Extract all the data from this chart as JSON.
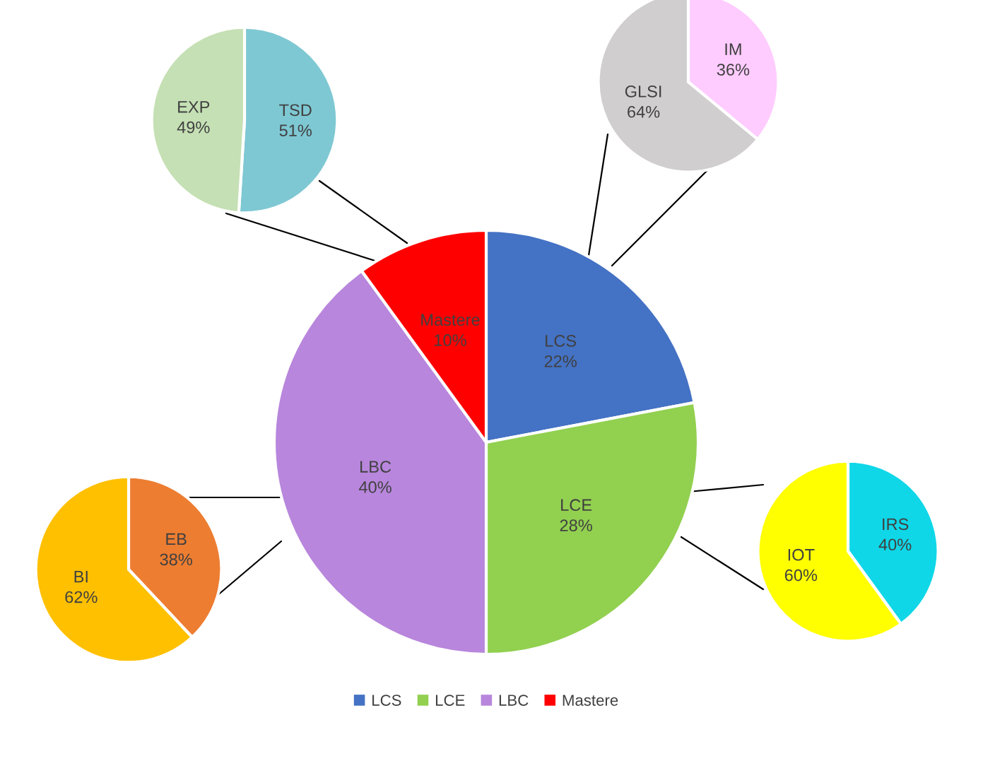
{
  "chart_data": [
    {
      "type": "pie",
      "categories": [
        "TSD",
        "EXP"
      ],
      "values": [
        51,
        49
      ],
      "colors": [
        "#7ec8d3",
        "#c5e0b4"
      ],
      "value_labels": [
        "51%",
        "49%"
      ],
      "legend": false
    },
    {
      "type": "pie",
      "categories": [
        "IM",
        "GLSI"
      ],
      "values": [
        36,
        64
      ],
      "colors": [
        "#ffccff",
        "#d0cece"
      ],
      "value_labels": [
        "36%",
        "64%"
      ],
      "legend": false
    },
    {
      "type": "pie",
      "categories": [
        "LCS",
        "LCE",
        "LBC",
        "Mastere"
      ],
      "values": [
        22,
        28,
        40,
        10
      ],
      "colors": [
        "#4472c4",
        "#92d050",
        "#b886dc",
        "#ff0000"
      ],
      "value_labels": [
        "22%",
        "28%",
        "40%",
        "10%"
      ],
      "legend": "bottom"
    },
    {
      "type": "pie",
      "categories": [
        "EB",
        "BI"
      ],
      "values": [
        38,
        62
      ],
      "colors": [
        "#ed7d31",
        "#ffc000"
      ],
      "value_labels": [
        "38%",
        "62%"
      ],
      "legend": false
    },
    {
      "type": "pie",
      "categories": [
        "IRS",
        "IOT"
      ],
      "values": [
        40,
        60
      ],
      "colors": [
        "#0fd7e8",
        "#ffff00"
      ],
      "value_labels": [
        "40%",
        "60%"
      ],
      "legend": false
    }
  ]
}
